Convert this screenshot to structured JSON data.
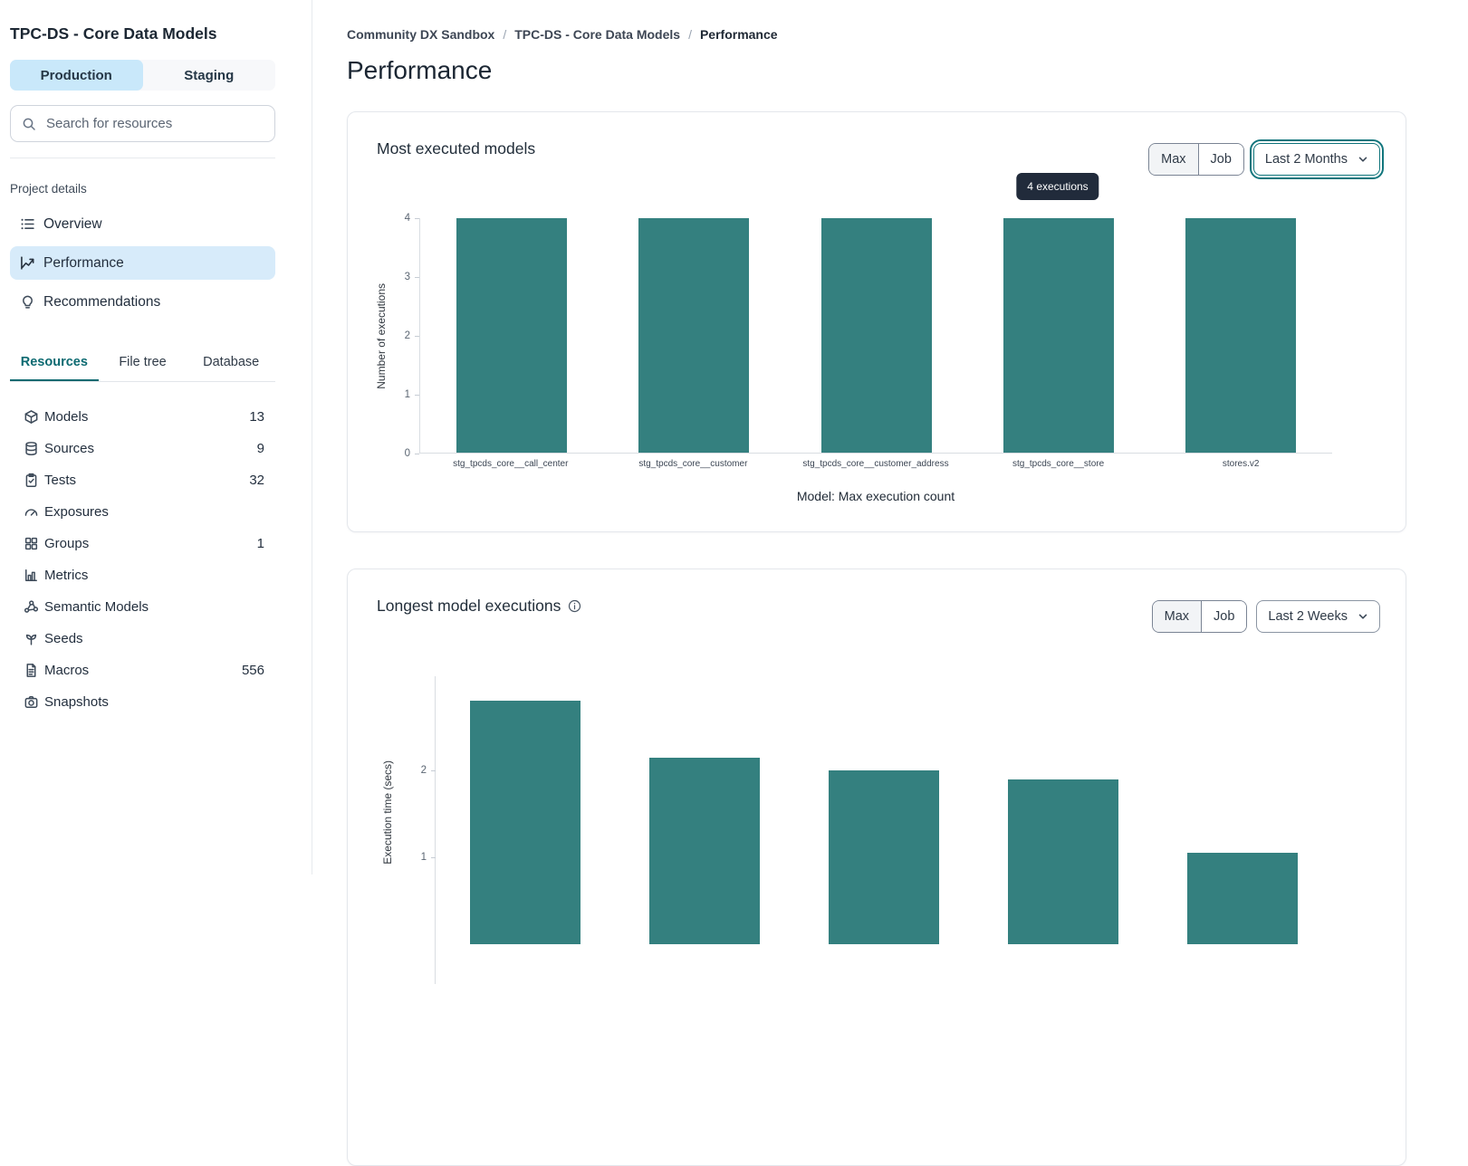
{
  "sidebar": {
    "title": "TPC-DS - Core Data Models",
    "env_tabs": [
      {
        "label": "Production",
        "active": true
      },
      {
        "label": "Staging",
        "active": false
      }
    ],
    "search": {
      "placeholder": "Search for resources"
    },
    "project_details_label": "Project details",
    "nav": [
      {
        "label": "Overview",
        "icon": "overview-list-icon",
        "active": false
      },
      {
        "label": "Performance",
        "icon": "performance-chart-icon",
        "active": true
      },
      {
        "label": "Recommendations",
        "icon": "lightbulb-icon",
        "active": false
      }
    ],
    "resource_tabs": [
      {
        "label": "Resources",
        "active": true
      },
      {
        "label": "File tree",
        "active": false
      },
      {
        "label": "Database",
        "active": false
      }
    ],
    "resources": [
      {
        "label": "Models",
        "count": "13",
        "icon": "cube"
      },
      {
        "label": "Sources",
        "count": "9",
        "icon": "database"
      },
      {
        "label": "Tests",
        "count": "32",
        "icon": "clipboard"
      },
      {
        "label": "Exposures",
        "count": "",
        "icon": "gauge"
      },
      {
        "label": "Groups",
        "count": "1",
        "icon": "grid"
      },
      {
        "label": "Metrics",
        "count": "",
        "icon": "barchart"
      },
      {
        "label": "Semantic Models",
        "count": "",
        "icon": "nodes"
      },
      {
        "label": "Seeds",
        "count": "",
        "icon": "sprout"
      },
      {
        "label": "Macros",
        "count": "556",
        "icon": "document"
      },
      {
        "label": "Snapshots",
        "count": "",
        "icon": "camera"
      }
    ]
  },
  "breadcrumb": {
    "items": [
      "Community DX Sandbox",
      "TPC-DS - Core Data Models",
      "Performance"
    ],
    "separator": "/"
  },
  "page_title": "Performance",
  "cards": [
    {
      "title": "Most executed models",
      "toggle": [
        "Max",
        "Job"
      ],
      "toggle_active": "Max",
      "dropdown_value": "Last 2 Months",
      "dropdown_focused": true
    },
    {
      "title": "Longest model executions",
      "toggle": [
        "Max",
        "Job"
      ],
      "toggle_active": "Max",
      "dropdown_value": "Last 2 Weeks",
      "dropdown_focused": false,
      "has_info_icon": true
    }
  ],
  "colors": {
    "bar_teal": "#34807F",
    "accent_teal": "#0D6A71",
    "active_item_blue": "#D7EBFA",
    "env_active_blue": "#C9E8FA",
    "tooltip_bg": "#212B3B"
  },
  "chart_data": [
    {
      "type": "bar",
      "title": "Most executed models",
      "categories": [
        "stg_tpcds_core__call_center",
        "stg_tpcds_core__customer",
        "stg_tpcds_core__customer_address",
        "stg_tpcds_core__store",
        "stores.v2"
      ],
      "values": [
        4,
        4,
        4,
        4,
        4
      ],
      "xlabel": "Model: Max execution count",
      "ylabel": "Number of executions",
      "ylim": [
        0,
        4
      ],
      "yticks": [
        0,
        1,
        2,
        3,
        4
      ],
      "grid": false,
      "bar_color": "#34807F",
      "tooltip": {
        "text": "4 executions",
        "target_index": 3
      }
    },
    {
      "type": "bar",
      "title": "Longest model executions",
      "values": [
        2.8,
        2.15,
        2.0,
        1.9,
        1.05
      ],
      "ylabel": "Execution time (secs)",
      "ylim": [
        0,
        3
      ],
      "yticks": [
        1,
        2
      ],
      "grid": false,
      "bar_color": "#34807F",
      "clipped_at_viewport_bottom": true
    }
  ]
}
